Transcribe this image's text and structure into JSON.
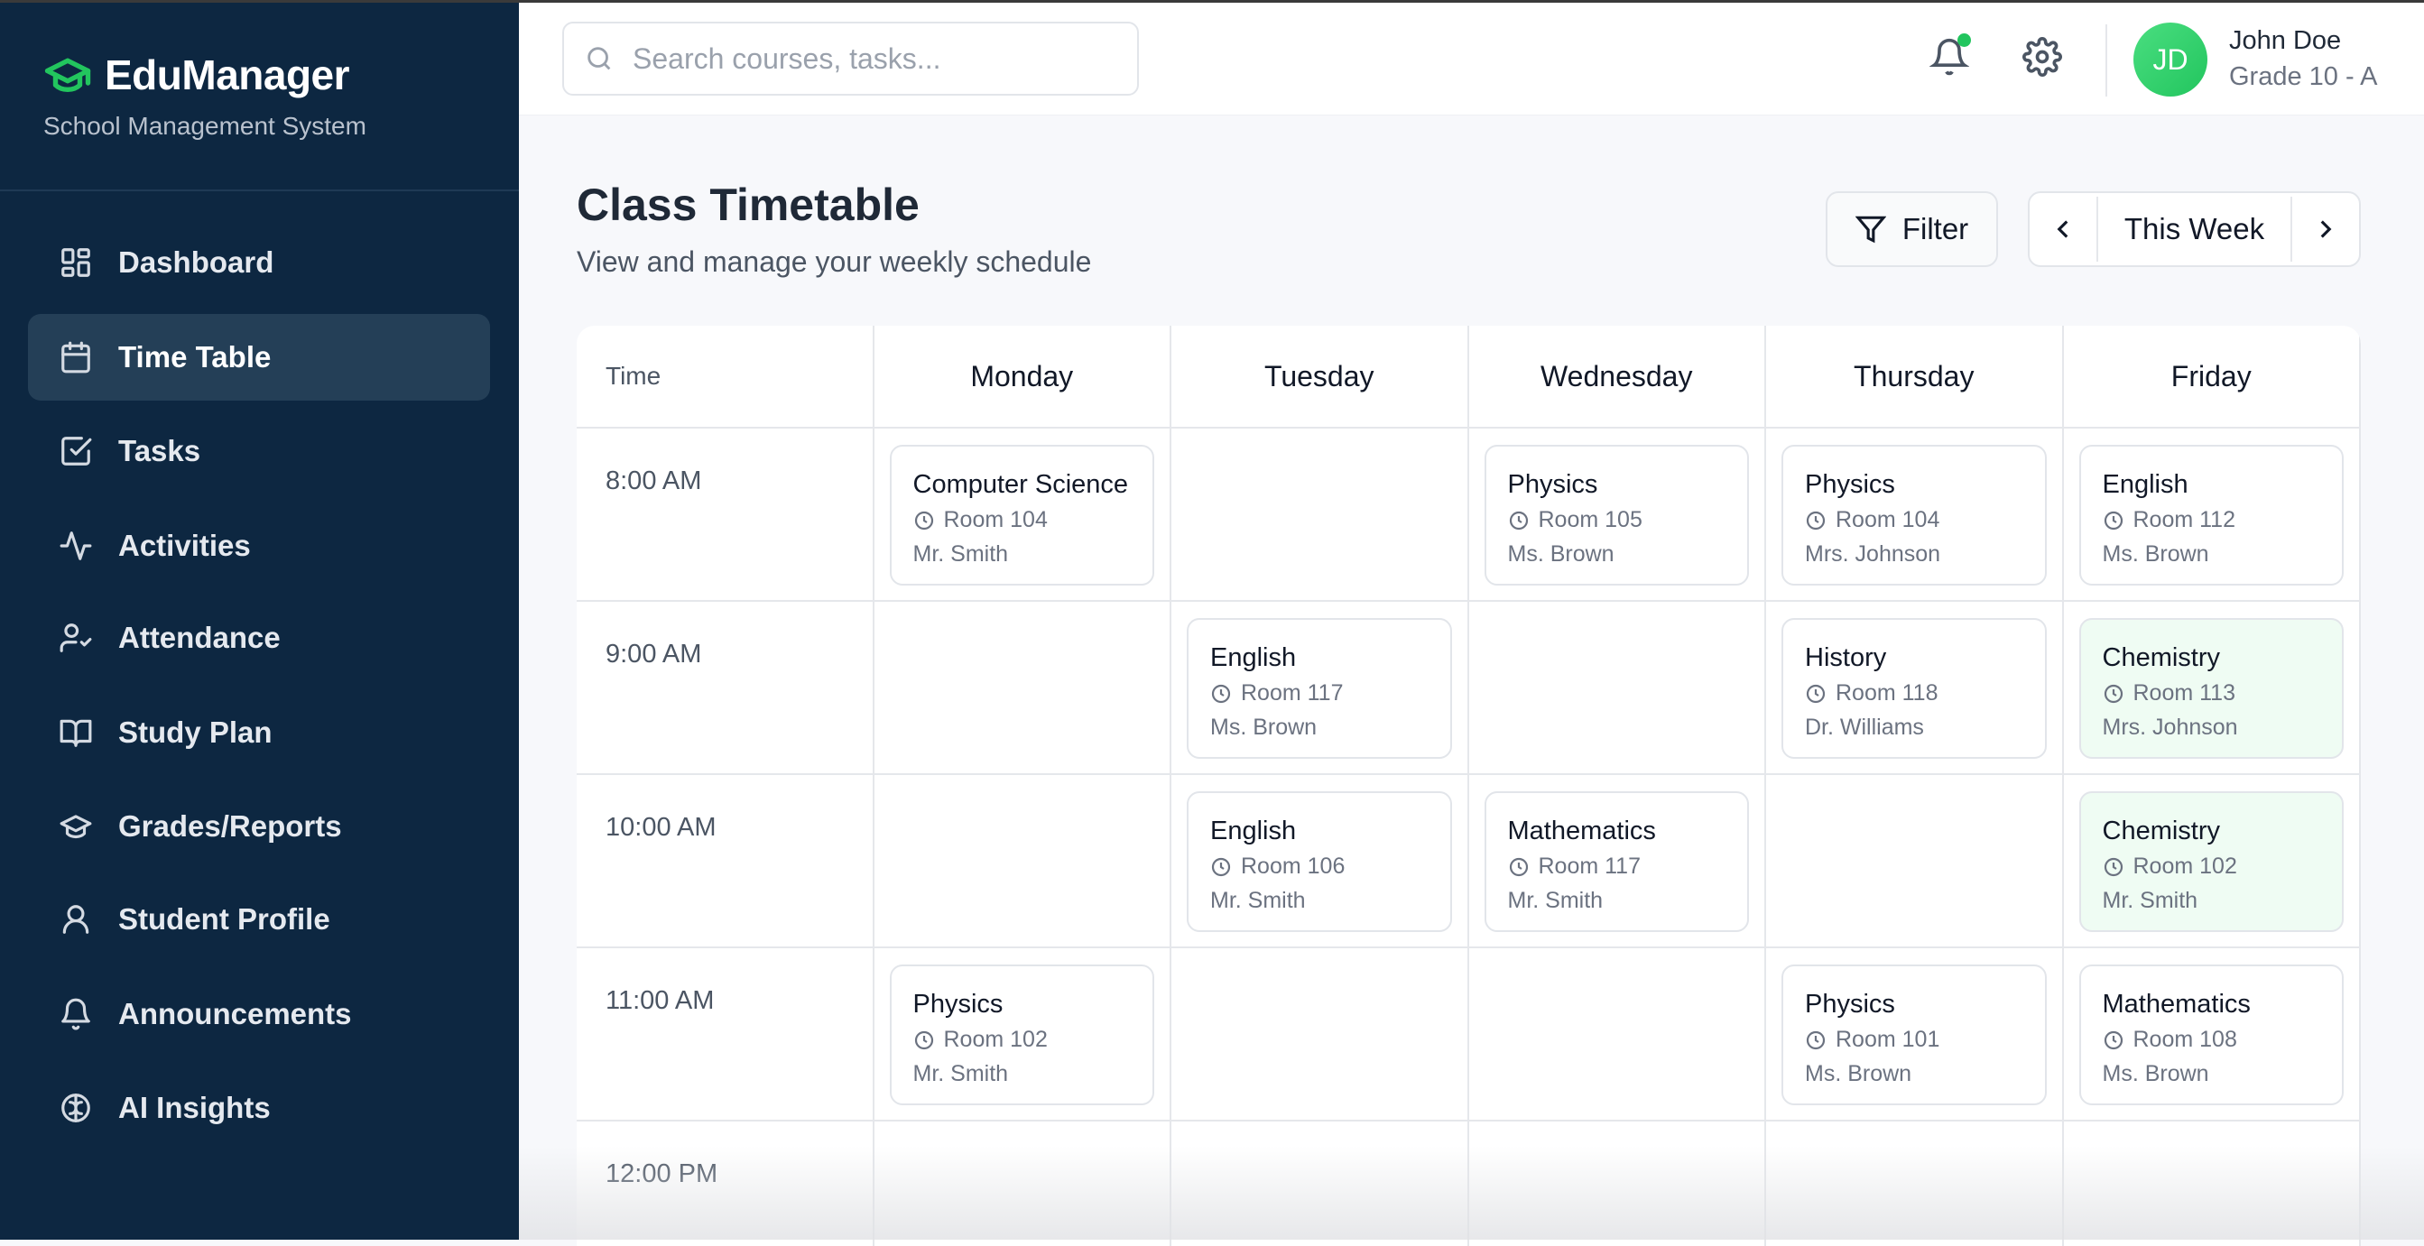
{
  "app": {
    "name": "EduManager",
    "subtitle": "School Management System",
    "accent": "#22c55e",
    "sidebar_bg": "#0d2741"
  },
  "sidebar": {
    "items": [
      {
        "label": "Dashboard",
        "icon": "dashboard-icon"
      },
      {
        "label": "Time Table",
        "icon": "calendar-icon",
        "active": true
      },
      {
        "label": "Tasks",
        "icon": "checkbox-icon"
      },
      {
        "label": "Activities",
        "icon": "activity-icon"
      },
      {
        "label": "Attendance",
        "icon": "user-check-icon"
      },
      {
        "label": "Study Plan",
        "icon": "book-open-icon"
      },
      {
        "label": "Grades/Reports",
        "icon": "graduation-cap-icon"
      },
      {
        "label": "Student Profile",
        "icon": "user-icon"
      },
      {
        "label": "Announcements",
        "icon": "bell-icon"
      },
      {
        "label": "AI Insights",
        "icon": "brain-icon"
      }
    ]
  },
  "header": {
    "search_placeholder": "Search courses, tasks...",
    "user": {
      "initials": "JD",
      "name": "John Doe",
      "grade": "Grade 10 - A"
    },
    "has_notification": true
  },
  "page": {
    "title": "Class Timetable",
    "subtitle": "View and manage your weekly schedule",
    "filter_label": "Filter",
    "week_label": "This Week"
  },
  "timetable": {
    "time_header": "Time",
    "days": [
      "Monday",
      "Tuesday",
      "Wednesday",
      "Thursday",
      "Friday"
    ],
    "rows": [
      {
        "time": "8:00 AM",
        "cells": [
          {
            "subject": "Computer Science",
            "room": "Room 104",
            "teacher": "Mr. Smith"
          },
          null,
          {
            "subject": "Physics",
            "room": "Room 105",
            "teacher": "Ms. Brown"
          },
          {
            "subject": "Physics",
            "room": "Room 104",
            "teacher": "Mrs. Johnson"
          },
          {
            "subject": "English",
            "room": "Room 112",
            "teacher": "Ms. Brown"
          }
        ]
      },
      {
        "time": "9:00 AM",
        "cells": [
          null,
          {
            "subject": "English",
            "room": "Room 117",
            "teacher": "Ms. Brown"
          },
          null,
          {
            "subject": "History",
            "room": "Room 118",
            "teacher": "Dr. Williams"
          },
          {
            "subject": "Chemistry",
            "room": "Room 113",
            "teacher": "Mrs. Johnson",
            "highlight": true
          }
        ]
      },
      {
        "time": "10:00 AM",
        "cells": [
          null,
          {
            "subject": "English",
            "room": "Room 106",
            "teacher": "Mr. Smith"
          },
          {
            "subject": "Mathematics",
            "room": "Room 117",
            "teacher": "Mr. Smith"
          },
          null,
          {
            "subject": "Chemistry",
            "room": "Room 102",
            "teacher": "Mr. Smith",
            "highlight": true
          }
        ]
      },
      {
        "time": "11:00 AM",
        "cells": [
          {
            "subject": "Physics",
            "room": "Room 102",
            "teacher": "Mr. Smith"
          },
          null,
          null,
          {
            "subject": "Physics",
            "room": "Room 101",
            "teacher": "Ms. Brown"
          },
          {
            "subject": "Mathematics",
            "room": "Room 108",
            "teacher": "Ms. Brown"
          }
        ]
      },
      {
        "time": "12:00 PM",
        "cells": [
          null,
          null,
          null,
          null,
          null
        ]
      }
    ]
  }
}
